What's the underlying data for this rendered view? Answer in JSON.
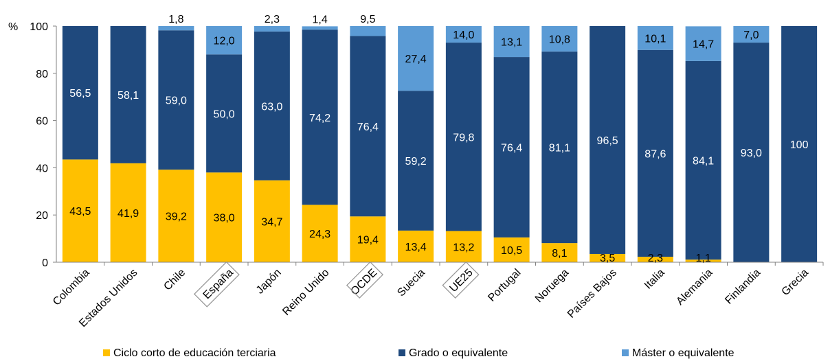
{
  "chart_data": {
    "type": "bar",
    "stacked": true,
    "y_unit": "%",
    "ylim": [
      0,
      100
    ],
    "yticks": [
      0,
      20,
      40,
      60,
      80,
      100
    ],
    "grid": false,
    "legend_placement": "bottom",
    "categories": [
      "Colombia",
      "Estados Unidos",
      "Chile",
      "España",
      "Japón",
      "Reino Unido",
      "OCDE",
      "Suecia",
      "UE25",
      "Portugal",
      "Noruega",
      "Países Bajos",
      "Italia",
      "Alemania",
      "Finlandia",
      "Grecia"
    ],
    "boxed_categories": [
      "España",
      "OCDE",
      "UE25"
    ],
    "series": [
      {
        "name": "Ciclo corto de educación terciaria",
        "color": "#FFC000",
        "label_color": "#000000",
        "values": [
          43.5,
          41.9,
          39.2,
          38.0,
          34.7,
          24.3,
          19.4,
          13.4,
          13.2,
          10.5,
          8.1,
          3.5,
          2.3,
          1.1,
          null,
          null
        ],
        "labels": [
          "43,5",
          "41,9",
          "39,2",
          "38,0",
          "34,7",
          "24,3",
          "19,4",
          "13,4",
          "13,2",
          "10,5",
          "8,1",
          "3,5",
          "2,3",
          "1,1",
          "",
          ""
        ]
      },
      {
        "name": "Grado o equivalente",
        "color": "#1F497D",
        "label_color": "#FFFFFF",
        "values": [
          56.5,
          58.1,
          59.0,
          50.0,
          63.0,
          74.2,
          76.4,
          59.2,
          79.8,
          76.4,
          81.1,
          96.5,
          87.6,
          84.1,
          93.0,
          100
        ],
        "labels": [
          "56,5",
          "58,1",
          "59,0",
          "50,0",
          "63,0",
          "74,2",
          "76,4",
          "59,2",
          "79,8",
          "76,4",
          "81,1",
          "96,5",
          "87,6",
          "84,1",
          "93,0",
          "100"
        ]
      },
      {
        "name": "Máster o equivalente",
        "color": "#5B9BD5",
        "label_color": "#000000",
        "values": [
          null,
          null,
          1.8,
          12.0,
          2.3,
          1.4,
          9.5,
          27.4,
          14.0,
          13.1,
          10.8,
          null,
          10.1,
          14.7,
          7.0,
          null
        ],
        "labels": [
          "",
          "",
          "1,8",
          "12,0",
          "2,3",
          "1,4",
          "9,5",
          "27,4",
          "14,0",
          "13,1",
          "10,8",
          "",
          "10,1",
          "14,7",
          "7,0",
          ""
        ]
      }
    ]
  }
}
